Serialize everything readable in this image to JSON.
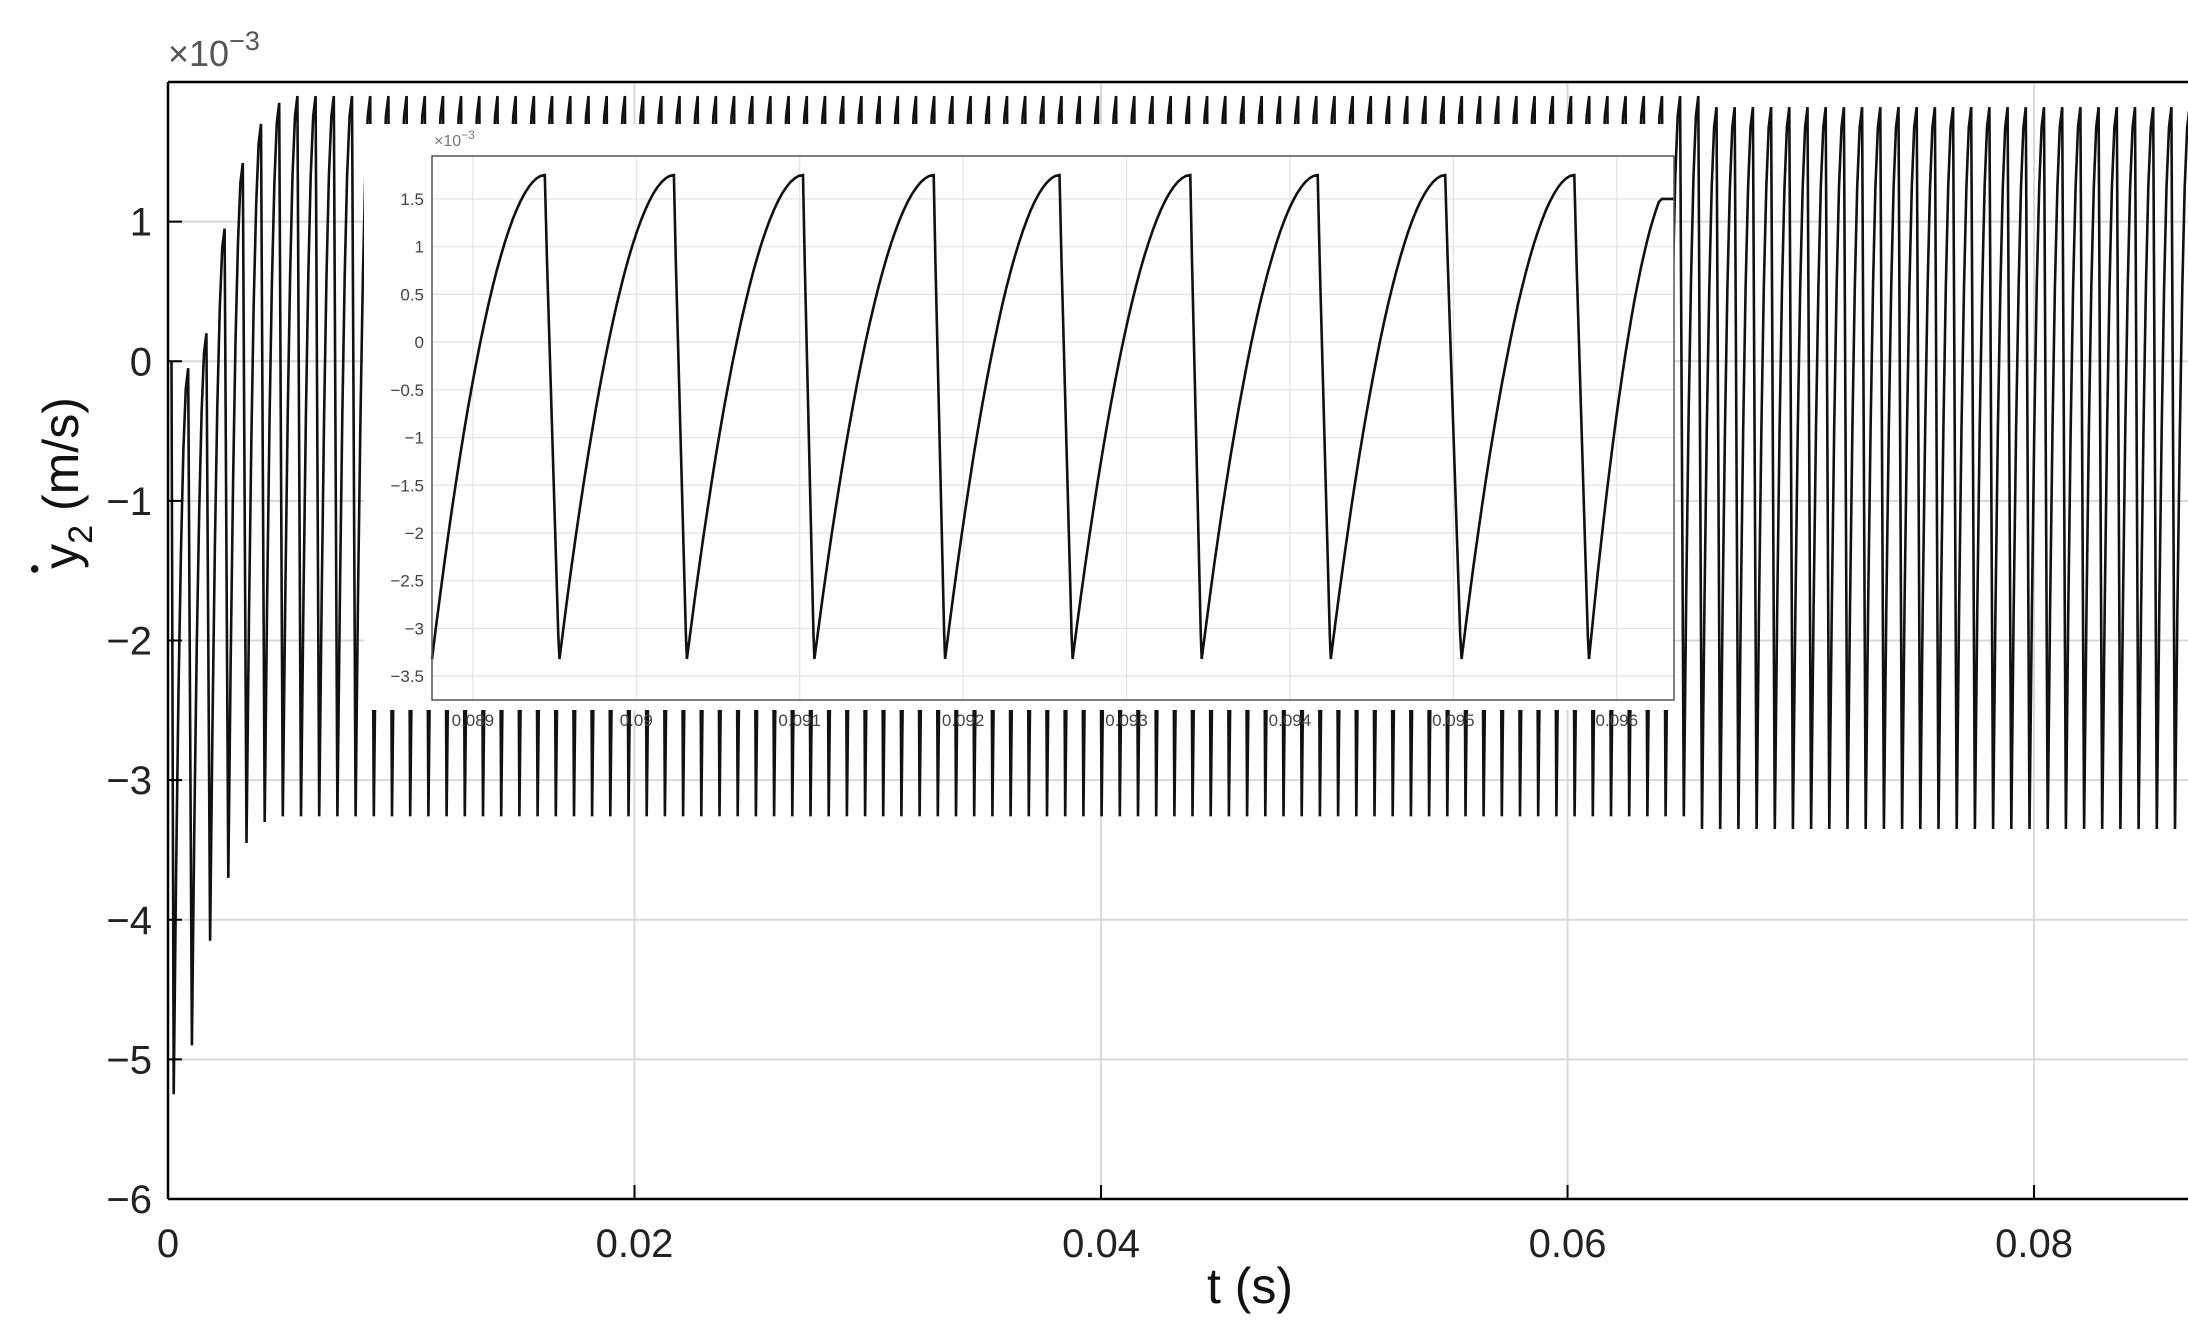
{
  "chart_data": [
    {
      "type": "line",
      "title": "",
      "xlabel": "t (s)",
      "ylabel": "y",
      "ylabel_dot": "•",
      "ylabel_sub": "2",
      "ylabel_unit": "(m/s)",
      "y_exponent_base": "×10",
      "y_exponent": "−3",
      "xlim": [
        0,
        0.0866
      ],
      "ylim": [
        -6,
        2
      ],
      "grid": true,
      "x_ticks": [
        0,
        0.02,
        0.04,
        0.06,
        0.08
      ],
      "x_tick_labels": [
        "0",
        "0.02",
        "0.04",
        "0.06",
        "0.08"
      ],
      "y_ticks": [
        -6,
        -5,
        -4,
        -3,
        -2,
        -1,
        0,
        1
      ],
      "y_tick_labels": [
        "−6",
        "−5",
        "−4",
        "−3",
        "−2",
        "−1",
        "0",
        "1"
      ],
      "series": [
        {
          "description_period_s": 0.00078,
          "steady_max": 1.9,
          "steady_min": -3.26,
          "late_max": 1.82,
          "late_min": -3.35,
          "late_change_t": 0.0655,
          "transient_peaks": [
            -0.05,
            0.2,
            0.95,
            1.42,
            1.7,
            1.85
          ],
          "transient_troughs": [
            -5.25,
            -4.9,
            -4.15,
            -3.7,
            -3.45,
            -3.3
          ]
        }
      ]
    },
    {
      "type": "line",
      "role": "inset",
      "title": "",
      "xlabel": "",
      "ylabel": "",
      "y_exponent_base": "×10",
      "y_exponent": "−3",
      "xlim": [
        0.08875,
        0.09635
      ],
      "ylim": [
        -3.75,
        1.95
      ],
      "grid": true,
      "x_ticks": [
        0.089,
        0.09,
        0.091,
        0.092,
        0.093,
        0.094,
        0.095,
        0.096
      ],
      "x_tick_labels": [
        "0.089",
        "0.09",
        "0.091",
        "0.092",
        "0.093",
        "0.094",
        "0.095",
        "0.096"
      ],
      "y_ticks": [
        1.5,
        1,
        0.5,
        0,
        -0.5,
        -1,
        -1.5,
        -2,
        -2.5,
        -3,
        -3.5
      ],
      "y_tick_labels": [
        "1.5",
        "1",
        "0.5",
        "0",
        "−0.5",
        "−1",
        "−1.5",
        "−2",
        "−2.5",
        "−3",
        "−3.5"
      ],
      "series": [
        {
          "troughs_t": [
            0.08875,
            0.08953,
            0.09031,
            0.09109,
            0.09189,
            0.09267,
            0.09346,
            0.09425,
            0.09505,
            0.09583
          ],
          "peaks_t": [
            0.08944,
            0.09023,
            0.09102,
            0.09182,
            0.09259,
            0.09339,
            0.09417,
            0.09495,
            0.09574
          ],
          "peak_value": 1.75,
          "trough_value": -3.32,
          "end_value": 1.5
        }
      ]
    }
  ]
}
